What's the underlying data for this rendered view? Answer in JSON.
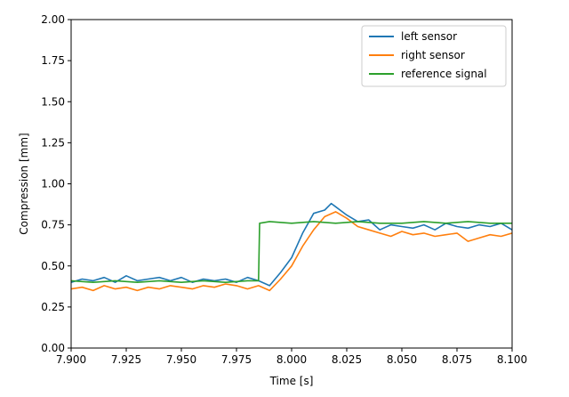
{
  "chart_data": {
    "type": "line",
    "title": "",
    "xlabel": "Time [s]",
    "ylabel": "Compression [mm]",
    "xlim": [
      7.9,
      8.1
    ],
    "ylim": [
      0.0,
      2.0
    ],
    "grid": false,
    "legend_position": "top-right",
    "x_ticks": [
      7.9,
      7.925,
      7.95,
      7.975,
      8.0,
      8.025,
      8.05,
      8.075,
      8.1
    ],
    "x_tick_labels": [
      "7.900",
      "7.925",
      "7.950",
      "7.975",
      "8.000",
      "8.025",
      "8.050",
      "8.075",
      "8.100"
    ],
    "y_ticks": [
      0.0,
      0.25,
      0.5,
      0.75,
      1.0,
      1.25,
      1.5,
      1.75,
      2.0
    ],
    "y_tick_labels": [
      "0.00",
      "0.25",
      "0.50",
      "0.75",
      "1.00",
      "1.25",
      "1.50",
      "1.75",
      "2.00"
    ],
    "series": [
      {
        "name": "left sensor",
        "color": "#1f77b4",
        "x": [
          7.9,
          7.905,
          7.91,
          7.915,
          7.92,
          7.925,
          7.93,
          7.935,
          7.94,
          7.945,
          7.95,
          7.955,
          7.96,
          7.965,
          7.97,
          7.975,
          7.98,
          7.985,
          7.99,
          7.995,
          8.0,
          8.005,
          8.01,
          8.015,
          8.018,
          8.02,
          8.025,
          8.03,
          8.035,
          8.04,
          8.045,
          8.05,
          8.055,
          8.06,
          8.065,
          8.07,
          8.075,
          8.08,
          8.085,
          8.09,
          8.095,
          8.1
        ],
        "y": [
          0.4,
          0.42,
          0.41,
          0.43,
          0.4,
          0.44,
          0.41,
          0.42,
          0.43,
          0.41,
          0.43,
          0.4,
          0.42,
          0.41,
          0.42,
          0.4,
          0.43,
          0.41,
          0.38,
          0.46,
          0.55,
          0.7,
          0.82,
          0.84,
          0.88,
          0.86,
          0.81,
          0.77,
          0.78,
          0.72,
          0.75,
          0.74,
          0.73,
          0.75,
          0.72,
          0.76,
          0.74,
          0.73,
          0.75,
          0.74,
          0.76,
          0.72
        ]
      },
      {
        "name": "right sensor",
        "color": "#ff7f0e",
        "x": [
          7.9,
          7.905,
          7.91,
          7.915,
          7.92,
          7.925,
          7.93,
          7.935,
          7.94,
          7.945,
          7.95,
          7.955,
          7.96,
          7.965,
          7.97,
          7.975,
          7.98,
          7.985,
          7.99,
          7.995,
          8.0,
          8.005,
          8.01,
          8.015,
          8.02,
          8.025,
          8.03,
          8.035,
          8.04,
          8.045,
          8.05,
          8.055,
          8.06,
          8.065,
          8.07,
          8.075,
          8.08,
          8.085,
          8.09,
          8.095,
          8.1
        ],
        "y": [
          0.36,
          0.37,
          0.35,
          0.38,
          0.36,
          0.37,
          0.35,
          0.37,
          0.36,
          0.38,
          0.37,
          0.36,
          0.38,
          0.37,
          0.39,
          0.38,
          0.36,
          0.38,
          0.35,
          0.42,
          0.5,
          0.62,
          0.72,
          0.8,
          0.83,
          0.79,
          0.74,
          0.72,
          0.7,
          0.68,
          0.71,
          0.69,
          0.7,
          0.68,
          0.69,
          0.7,
          0.65,
          0.67,
          0.69,
          0.68,
          0.7
        ]
      },
      {
        "name": "reference signal",
        "color": "#2ca02c",
        "x": [
          7.9,
          7.91,
          7.92,
          7.93,
          7.94,
          7.95,
          7.96,
          7.97,
          7.98,
          7.985,
          7.9855,
          7.99,
          8.0,
          8.01,
          8.02,
          8.03,
          8.04,
          8.05,
          8.06,
          8.07,
          8.08,
          8.09,
          8.1
        ],
        "y": [
          0.41,
          0.4,
          0.41,
          0.4,
          0.41,
          0.4,
          0.41,
          0.4,
          0.41,
          0.41,
          0.76,
          0.77,
          0.76,
          0.77,
          0.76,
          0.77,
          0.76,
          0.76,
          0.77,
          0.76,
          0.77,
          0.76,
          0.76
        ]
      }
    ]
  }
}
